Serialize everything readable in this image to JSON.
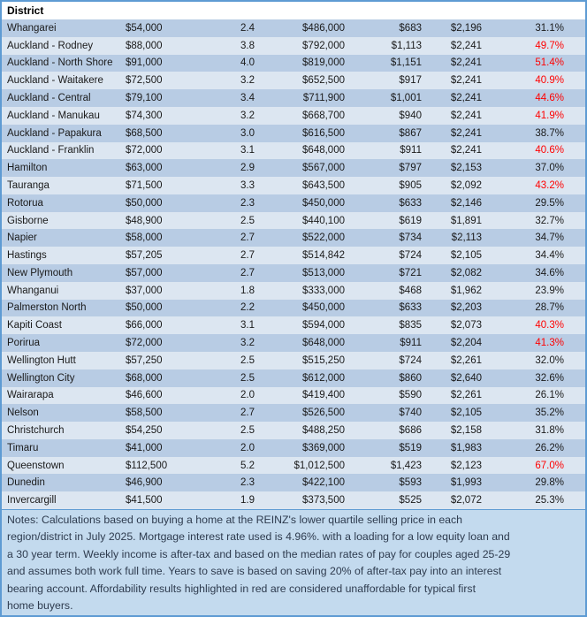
{
  "table": {
    "header_label": "District",
    "rows": [
      {
        "district": "Whangarei",
        "values": [
          "$54,000",
          "2.4",
          "$486,000",
          "$683",
          "$2,196",
          "31.1%"
        ],
        "highlight": false
      },
      {
        "district": "Auckland - Rodney",
        "values": [
          "$88,000",
          "3.8",
          "$792,000",
          "$1,113",
          "$2,241",
          "49.7%"
        ],
        "highlight": true
      },
      {
        "district": "Auckland - North Shore",
        "values": [
          "$91,000",
          "4.0",
          "$819,000",
          "$1,151",
          "$2,241",
          "51.4%"
        ],
        "highlight": true
      },
      {
        "district": "Auckland - Waitakere",
        "values": [
          "$72,500",
          "3.2",
          "$652,500",
          "$917",
          "$2,241",
          "40.9%"
        ],
        "highlight": true
      },
      {
        "district": "Auckland - Central",
        "values": [
          "$79,100",
          "3.4",
          "$711,900",
          "$1,001",
          "$2,241",
          "44.6%"
        ],
        "highlight": true
      },
      {
        "district": "Auckland - Manukau",
        "values": [
          "$74,300",
          "3.2",
          "$668,700",
          "$940",
          "$2,241",
          "41.9%"
        ],
        "highlight": true
      },
      {
        "district": "Auckland - Papakura",
        "values": [
          "$68,500",
          "3.0",
          "$616,500",
          "$867",
          "$2,241",
          "38.7%"
        ],
        "highlight": false
      },
      {
        "district": "Auckland - Franklin",
        "values": [
          "$72,000",
          "3.1",
          "$648,000",
          "$911",
          "$2,241",
          "40.6%"
        ],
        "highlight": true
      },
      {
        "district": "Hamilton",
        "values": [
          "$63,000",
          "2.9",
          "$567,000",
          "$797",
          "$2,153",
          "37.0%"
        ],
        "highlight": false
      },
      {
        "district": "Tauranga",
        "values": [
          "$71,500",
          "3.3",
          "$643,500",
          "$905",
          "$2,092",
          "43.2%"
        ],
        "highlight": true
      },
      {
        "district": "Rotorua",
        "values": [
          "$50,000",
          "2.3",
          "$450,000",
          "$633",
          "$2,146",
          "29.5%"
        ],
        "highlight": false
      },
      {
        "district": "Gisborne",
        "values": [
          "$48,900",
          "2.5",
          "$440,100",
          "$619",
          "$1,891",
          "32.7%"
        ],
        "highlight": false
      },
      {
        "district": "Napier",
        "values": [
          "$58,000",
          "2.7",
          "$522,000",
          "$734",
          "$2,113",
          "34.7%"
        ],
        "highlight": false
      },
      {
        "district": "Hastings",
        "values": [
          "$57,205",
          "2.7",
          "$514,842",
          "$724",
          "$2,105",
          "34.4%"
        ],
        "highlight": false
      },
      {
        "district": "New Plymouth",
        "values": [
          "$57,000",
          "2.7",
          "$513,000",
          "$721",
          "$2,082",
          "34.6%"
        ],
        "highlight": false
      },
      {
        "district": "Whanganui",
        "values": [
          "$37,000",
          "1.8",
          "$333,000",
          "$468",
          "$1,962",
          "23.9%"
        ],
        "highlight": false
      },
      {
        "district": "Palmerston North",
        "values": [
          "$50,000",
          "2.2",
          "$450,000",
          "$633",
          "$2,203",
          "28.7%"
        ],
        "highlight": false
      },
      {
        "district": "Kapiti Coast",
        "values": [
          "$66,000",
          "3.1",
          "$594,000",
          "$835",
          "$2,073",
          "40.3%"
        ],
        "highlight": true
      },
      {
        "district": "Porirua",
        "values": [
          "$72,000",
          "3.2",
          "$648,000",
          "$911",
          "$2,204",
          "41.3%"
        ],
        "highlight": true
      },
      {
        "district": "Wellington Hutt",
        "values": [
          "$57,250",
          "2.5",
          "$515,250",
          "$724",
          "$2,261",
          "32.0%"
        ],
        "highlight": false
      },
      {
        "district": "Wellington City",
        "values": [
          "$68,000",
          "2.5",
          "$612,000",
          "$860",
          "$2,640",
          "32.6%"
        ],
        "highlight": false
      },
      {
        "district": "Wairarapa",
        "values": [
          "$46,600",
          "2.0",
          "$419,400",
          "$590",
          "$2,261",
          "26.1%"
        ],
        "highlight": false
      },
      {
        "district": "Nelson",
        "values": [
          "$58,500",
          "2.7",
          "$526,500",
          "$740",
          "$2,105",
          "35.2%"
        ],
        "highlight": false
      },
      {
        "district": "Christchurch",
        "values": [
          "$54,250",
          "2.5",
          "$488,250",
          "$686",
          "$2,158",
          "31.8%"
        ],
        "highlight": false
      },
      {
        "district": "Timaru",
        "values": [
          "$41,000",
          "2.0",
          "$369,000",
          "$519",
          "$1,983",
          "26.2%"
        ],
        "highlight": false
      },
      {
        "district": "Queenstown",
        "values": [
          "$112,500",
          "5.2",
          "$1,012,500",
          "$1,423",
          "$2,123",
          "67.0%"
        ],
        "highlight": true
      },
      {
        "district": "Dunedin",
        "values": [
          "$46,900",
          "2.3",
          "$422,100",
          "$593",
          "$1,993",
          "29.8%"
        ],
        "highlight": false
      },
      {
        "district": "Invercargill",
        "values": [
          "$41,500",
          "1.9",
          "$373,500",
          "$525",
          "$2,072",
          "25.3%"
        ],
        "highlight": false
      }
    ]
  },
  "notes_lines": [
    "Notes: Calculations based on buying a home at the REINZ's lower quartile selling price in each",
    "region/district in July 2025. Mortgage interest rate used is 4.96%. with a loading for a low equity loan and",
    "a 30 year term. Weekly income is after-tax and based on the median rates of pay for couples aged 25-29",
    "and assumes both work full time. Years to save is based on saving 20% of after-tax pay into an interest",
    "bearing account. Affordability results highlighted in red are considered unaffordable for typical first",
    "home buyers."
  ],
  "colors": {
    "border": "#5e9bd3",
    "row_odd": "#b8cce4",
    "row_even": "#dce6f1",
    "notes_bg": "#c3daee",
    "red": "#ff0000",
    "text": "#1a1a1a",
    "notes_text": "#2e3b4e"
  }
}
